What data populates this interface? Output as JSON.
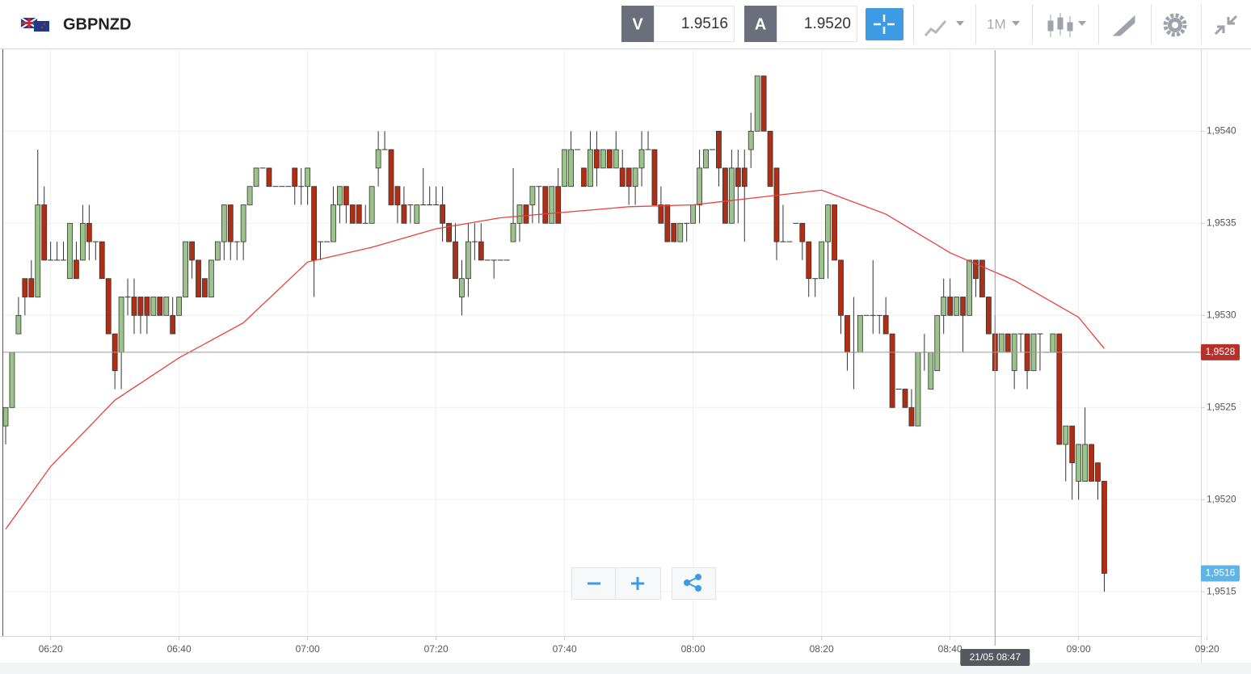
{
  "header": {
    "symbol": "GBPNZD",
    "sell_label": "V",
    "sell": "1.9516",
    "buy_label": "A",
    "buy": "1.9520",
    "timeframe": "1M"
  },
  "chart_data": {
    "type": "candlestick",
    "x": [
      "06:13",
      "06:14",
      "06:15",
      "06:16",
      "06:17",
      "06:18",
      "06:19",
      "06:20",
      "06:21",
      "06:22",
      "06:23",
      "06:24",
      "06:25",
      "06:26",
      "06:27",
      "06:28",
      "06:29",
      "06:30",
      "06:31",
      "06:32",
      "06:33",
      "06:34",
      "06:35",
      "06:36",
      "06:37",
      "06:38",
      "06:39",
      "06:40",
      "06:41",
      "06:42",
      "06:43",
      "06:44",
      "06:45",
      "06:46",
      "06:47",
      "06:48",
      "06:49",
      "06:50",
      "06:51",
      "06:52",
      "06:53",
      "06:54",
      "06:55",
      "06:56",
      "06:57",
      "06:58",
      "06:59",
      "07:00",
      "07:01",
      "07:02",
      "07:03",
      "07:04",
      "07:05",
      "07:06",
      "07:07",
      "07:08",
      "07:09",
      "07:10",
      "07:11",
      "07:12",
      "07:13",
      "07:14",
      "07:15",
      "07:16",
      "07:17",
      "07:18",
      "07:19",
      "07:20",
      "07:21",
      "07:22",
      "07:23",
      "07:24",
      "07:25",
      "07:26",
      "07:27",
      "07:28",
      "07:29",
      "07:30",
      "07:31",
      "07:32",
      "07:33",
      "07:34",
      "07:35",
      "07:36",
      "07:37",
      "07:38",
      "07:39",
      "07:40",
      "07:41",
      "07:42",
      "07:43",
      "07:44",
      "07:45",
      "07:46",
      "07:47",
      "07:48",
      "07:49",
      "07:50",
      "07:51",
      "07:52",
      "07:53",
      "07:54",
      "07:55",
      "07:56",
      "07:57",
      "07:58",
      "07:59",
      "08:00",
      "08:01",
      "08:02",
      "08:03",
      "08:04",
      "08:05",
      "08:06",
      "08:07",
      "08:08",
      "08:09",
      "08:10",
      "08:11",
      "08:12",
      "08:13",
      "08:14",
      "08:15",
      "08:16",
      "08:17",
      "08:18",
      "08:19",
      "08:20",
      "08:21",
      "08:22",
      "08:23",
      "08:24",
      "08:25",
      "08:26",
      "08:27",
      "08:28",
      "08:29",
      "08:30",
      "08:31",
      "08:32",
      "08:33",
      "08:34",
      "08:35",
      "08:36",
      "08:37",
      "08:38",
      "08:39",
      "08:40",
      "08:41",
      "08:42",
      "08:43",
      "08:44",
      "08:45",
      "08:46",
      "08:47",
      "08:48",
      "08:49",
      "08:50",
      "08:51",
      "08:52",
      "08:53",
      "08:54",
      "08:55",
      "08:56",
      "08:57",
      "08:58",
      "08:59",
      "09:00",
      "09:01",
      "09:02",
      "09:03",
      "09:04"
    ],
    "ohlc": [
      [
        1.9524,
        1.9525,
        1.9523,
        1.9525
      ],
      [
        1.9525,
        1.9528,
        1.9525,
        1.9528
      ],
      [
        1.9529,
        1.9531,
        1.9529,
        1.953
      ],
      [
        1.9532,
        1.9532,
        1.953,
        1.9531
      ],
      [
        1.9532,
        1.9533,
        1.9531,
        1.9531
      ],
      [
        1.9531,
        1.9539,
        1.9531,
        1.9536
      ],
      [
        1.9536,
        1.9537,
        1.9533,
        1.9533
      ],
      [
        1.9533,
        1.9534,
        1.9533,
        1.9533
      ],
      [
        1.9533,
        1.9534,
        1.9533,
        1.9533
      ],
      [
        1.9533,
        1.9534,
        1.9533,
        1.9533
      ],
      [
        1.9532,
        1.9535,
        1.9532,
        1.9535
      ],
      [
        1.9533,
        1.9534,
        1.9532,
        1.9532
      ],
      [
        1.9533,
        1.9536,
        1.9533,
        1.9535
      ],
      [
        1.9535,
        1.9536,
        1.9533,
        1.9534
      ],
      [
        1.9534,
        1.9534,
        1.9533,
        1.9534
      ],
      [
        1.9534,
        1.9534,
        1.9532,
        1.9532
      ],
      [
        1.9532,
        1.9532,
        1.9529,
        1.9529
      ],
      [
        1.9529,
        1.9529,
        1.9526,
        1.9527
      ],
      [
        1.9528,
        1.9531,
        1.9526,
        1.9531
      ],
      [
        1.9531,
        1.9532,
        1.953,
        1.9531
      ],
      [
        1.9531,
        1.9532,
        1.9529,
        1.953
      ],
      [
        1.9531,
        1.9531,
        1.9529,
        1.953
      ],
      [
        1.9531,
        1.9531,
        1.9529,
        1.953
      ],
      [
        1.953,
        1.9531,
        1.953,
        1.9531
      ],
      [
        1.9531,
        1.9531,
        1.953,
        1.953
      ],
      [
        1.953,
        1.9531,
        1.953,
        1.9531
      ],
      [
        1.953,
        1.9531,
        1.9529,
        1.9529
      ],
      [
        1.953,
        1.9531,
        1.953,
        1.9531
      ],
      [
        1.9531,
        1.9534,
        1.9531,
        1.9534
      ],
      [
        1.9534,
        1.9534,
        1.9532,
        1.9533
      ],
      [
        1.9533,
        1.9533,
        1.9531,
        1.9531
      ],
      [
        1.9532,
        1.9532,
        1.9531,
        1.9531
      ],
      [
        1.9531,
        1.9533,
        1.9531,
        1.9533
      ],
      [
        1.9533,
        1.9534,
        1.9533,
        1.9534
      ],
      [
        1.9534,
        1.9536,
        1.9533,
        1.9536
      ],
      [
        1.9536,
        1.9536,
        1.9533,
        1.9534
      ],
      [
        1.9534,
        1.9534,
        1.9533,
        1.9534
      ],
      [
        1.9534,
        1.9536,
        1.9533,
        1.9536
      ],
      [
        1.9536,
        1.9537,
        1.9536,
        1.9537
      ],
      [
        1.9537,
        1.9538,
        1.9537,
        1.9538
      ],
      [
        1.9538,
        1.9538,
        1.9538,
        1.9538
      ],
      [
        1.9538,
        1.9538,
        1.9537,
        1.9537
      ],
      [
        1.9537,
        1.9537,
        1.9537,
        1.9537
      ],
      [
        1.9537,
        1.9537,
        1.9537,
        1.9537
      ],
      [
        1.9537,
        1.9537,
        1.9537,
        1.9537
      ],
      [
        1.9538,
        1.9538,
        1.9536,
        1.9537
      ],
      [
        1.9537,
        1.9538,
        1.9536,
        1.9537
      ],
      [
        1.9537,
        1.9538,
        1.9536,
        1.9538
      ],
      [
        1.9537,
        1.9537,
        1.9531,
        1.9533
      ],
      [
        1.9534,
        1.9534,
        1.9533,
        1.9534
      ],
      [
        1.9534,
        1.9534,
        1.9534,
        1.9534
      ],
      [
        1.9534,
        1.9537,
        1.9534,
        1.9536
      ],
      [
        1.9536,
        1.9537,
        1.9535,
        1.9537
      ],
      [
        1.9537,
        1.9537,
        1.9535,
        1.9536
      ],
      [
        1.9536,
        1.9536,
        1.9535,
        1.9535
      ],
      [
        1.9536,
        1.9536,
        1.9535,
        1.9535
      ],
      [
        1.9535,
        1.9536,
        1.9535,
        1.9535
      ],
      [
        1.9535,
        1.9537,
        1.9535,
        1.9537
      ],
      [
        1.9538,
        1.954,
        1.9537,
        1.9539
      ],
      [
        1.9539,
        1.954,
        1.9539,
        1.9539
      ],
      [
        1.9539,
        1.9539,
        1.9536,
        1.9536
      ],
      [
        1.9537,
        1.9537,
        1.9535,
        1.9536
      ],
      [
        1.9536,
        1.9537,
        1.9535,
        1.9535
      ],
      [
        1.9536,
        1.9536,
        1.9535,
        1.9536
      ],
      [
        1.9535,
        1.9536,
        1.9535,
        1.9536
      ],
      [
        1.9536,
        1.9538,
        1.9536,
        1.9536
      ],
      [
        1.9536,
        1.9537,
        1.9536,
        1.9536
      ],
      [
        1.9536,
        1.9537,
        1.9536,
        1.9536
      ],
      [
        1.9536,
        1.9537,
        1.9534,
        1.9535
      ],
      [
        1.9535,
        1.9535,
        1.9534,
        1.9534
      ],
      [
        1.9534,
        1.9535,
        1.9532,
        1.9532
      ],
      [
        1.9531,
        1.9533,
        1.953,
        1.9532
      ],
      [
        1.9532,
        1.9535,
        1.9531,
        1.9534
      ],
      [
        1.9534,
        1.9535,
        1.9533,
        1.9534
      ],
      [
        1.9534,
        1.9535,
        1.9533,
        1.9533
      ],
      [
        1.9533,
        1.9533,
        1.9533,
        1.9533
      ],
      [
        1.9533,
        1.9533,
        1.9532,
        1.9533
      ],
      [
        1.9533,
        1.9533,
        1.9533,
        1.9533
      ],
      [
        1.9533,
        1.9533,
        1.9533,
        1.9533
      ],
      [
        1.9534,
        1.9538,
        1.9534,
        1.9535
      ],
      [
        1.9535,
        1.9536,
        1.9534,
        1.9536
      ],
      [
        1.9536,
        1.9536,
        1.9535,
        1.9535
      ],
      [
        1.9536,
        1.9537,
        1.9535,
        1.9537
      ],
      [
        1.9537,
        1.9537,
        1.9535,
        1.9537
      ],
      [
        1.9537,
        1.9537,
        1.9535,
        1.9535
      ],
      [
        1.9535,
        1.9537,
        1.9535,
        1.9537
      ],
      [
        1.9537,
        1.9538,
        1.9535,
        1.9535
      ],
      [
        1.9537,
        1.9539,
        1.9537,
        1.9539
      ],
      [
        1.9537,
        1.954,
        1.9537,
        1.9539
      ],
      [
        1.9539,
        1.9539,
        1.9539,
        1.9539
      ],
      [
        1.9538,
        1.9538,
        1.9537,
        1.9537
      ],
      [
        1.9537,
        1.954,
        1.9537,
        1.9539
      ],
      [
        1.9539,
        1.954,
        1.9537,
        1.9538
      ],
      [
        1.9538,
        1.9539,
        1.9538,
        1.9539
      ],
      [
        1.9539,
        1.9539,
        1.9538,
        1.9538
      ],
      [
        1.9538,
        1.954,
        1.9538,
        1.9539
      ],
      [
        1.9538,
        1.9539,
        1.9537,
        1.9537
      ],
      [
        1.9538,
        1.9538,
        1.9536,
        1.9537
      ],
      [
        1.9537,
        1.9538,
        1.9536,
        1.9538
      ],
      [
        1.9538,
        1.954,
        1.9537,
        1.9539
      ],
      [
        1.9539,
        1.954,
        1.9539,
        1.9539
      ],
      [
        1.9539,
        1.9539,
        1.9536,
        1.9536
      ],
      [
        1.9536,
        1.9537,
        1.9535,
        1.9535
      ],
      [
        1.9536,
        1.9536,
        1.9534,
        1.9534
      ],
      [
        1.9535,
        1.9535,
        1.9534,
        1.9534
      ],
      [
        1.9534,
        1.9535,
        1.9534,
        1.9535
      ],
      [
        1.9535,
        1.9535,
        1.9534,
        1.9535
      ],
      [
        1.9535,
        1.9536,
        1.9535,
        1.9536
      ],
      [
        1.9536,
        1.9539,
        1.9535,
        1.9538
      ],
      [
        1.9538,
        1.9539,
        1.9538,
        1.9539
      ],
      [
        1.9539,
        1.9539,
        1.9539,
        1.9539
      ],
      [
        1.954,
        1.954,
        1.9537,
        1.9538
      ],
      [
        1.9538,
        1.9538,
        1.9535,
        1.9535
      ],
      [
        1.9535,
        1.9539,
        1.9535,
        1.9538
      ],
      [
        1.9538,
        1.9539,
        1.9535,
        1.9537
      ],
      [
        1.9538,
        1.9539,
        1.9534,
        1.9537
      ],
      [
        1.9539,
        1.9541,
        1.9538,
        1.954
      ],
      [
        1.954,
        1.9543,
        1.954,
        1.9543
      ],
      [
        1.9543,
        1.9543,
        1.954,
        1.954
      ],
      [
        1.954,
        1.954,
        1.9537,
        1.9537
      ],
      [
        1.9538,
        1.9538,
        1.9533,
        1.9534
      ],
      [
        1.9534,
        1.9536,
        1.9534,
        1.9534
      ],
      [
        1.9534,
        1.9534,
        1.9534,
        1.9534
      ],
      [
        1.9535,
        1.9535,
        1.9535,
        1.9535
      ],
      [
        1.9535,
        1.9535,
        1.9533,
        1.9534
      ],
      [
        1.9534,
        1.9534,
        1.9531,
        1.9532
      ],
      [
        1.9532,
        1.9532,
        1.9531,
        1.9532
      ],
      [
        1.9532,
        1.9534,
        1.9532,
        1.9534
      ],
      [
        1.9534,
        1.9536,
        1.9532,
        1.9536
      ],
      [
        1.9536,
        1.9536,
        1.9533,
        1.9533
      ],
      [
        1.9533,
        1.9533,
        1.9529,
        1.953
      ],
      [
        1.953,
        1.953,
        1.9527,
        1.9528
      ],
      [
        1.9528,
        1.9531,
        1.9526,
        1.9528
      ],
      [
        1.9528,
        1.953,
        1.9528,
        1.953
      ],
      [
        1.953,
        1.953,
        1.953,
        1.953
      ],
      [
        1.953,
        1.9533,
        1.9529,
        1.953
      ],
      [
        1.953,
        1.953,
        1.9529,
        1.953
      ],
      [
        1.953,
        1.9531,
        1.9529,
        1.9529
      ],
      [
        1.9529,
        1.9529,
        1.9525,
        1.9525
      ],
      [
        1.9526,
        1.9526,
        1.9526,
        1.9526
      ],
      [
        1.9526,
        1.9526,
        1.9525,
        1.9525
      ],
      [
        1.9525,
        1.9526,
        1.9524,
        1.9524
      ],
      [
        1.9524,
        1.9528,
        1.9524,
        1.9528
      ],
      [
        1.9528,
        1.9529,
        1.9527,
        1.9528
      ],
      [
        1.9526,
        1.9528,
        1.9526,
        1.9528
      ],
      [
        1.9527,
        1.953,
        1.9527,
        1.953
      ],
      [
        1.953,
        1.9532,
        1.9529,
        1.9531
      ],
      [
        1.9531,
        1.9532,
        1.953,
        1.953
      ],
      [
        1.953,
        1.9531,
        1.953,
        1.9531
      ],
      [
        1.9531,
        1.9531,
        1.9528,
        1.953
      ],
      [
        1.953,
        1.9533,
        1.953,
        1.9533
      ],
      [
        1.9533,
        1.9533,
        1.9531,
        1.9532
      ],
      [
        1.9533,
        1.9533,
        1.9531,
        1.9531
      ],
      [
        1.9531,
        1.9531,
        1.9529,
        1.9529
      ],
      [
        1.9529,
        1.953,
        1.9527,
        1.9527
      ],
      [
        1.9528,
        1.9529,
        1.9528,
        1.9529
      ],
      [
        1.9529,
        1.9529,
        1.9528,
        1.9528
      ],
      [
        1.9527,
        1.9529,
        1.9526,
        1.9529
      ],
      [
        1.9529,
        1.9529,
        1.9528,
        1.9529
      ],
      [
        1.9529,
        1.9529,
        1.9526,
        1.9527
      ],
      [
        1.9527,
        1.9529,
        1.9527,
        1.9529
      ],
      [
        1.9529,
        1.9529,
        1.9527,
        1.9529
      ],
      [
        1.9528,
        1.9528,
        1.9528,
        1.9528
      ],
      [
        1.9528,
        1.9529,
        1.9528,
        1.9529
      ],
      [
        1.9529,
        1.9529,
        1.9523,
        1.9523
      ],
      [
        1.9523,
        1.9524,
        1.9521,
        1.9524
      ],
      [
        1.9524,
        1.9524,
        1.952,
        1.9522
      ],
      [
        1.9521,
        1.9523,
        1.952,
        1.9523
      ],
      [
        1.9521,
        1.9525,
        1.9521,
        1.9523
      ],
      [
        1.9523,
        1.9523,
        1.9521,
        1.9521
      ],
      [
        1.9522,
        1.9522,
        1.952,
        1.9521
      ],
      [
        1.9521,
        1.9521,
        1.9515,
        1.9516
      ]
    ],
    "up_color": "#9cc48a",
    "down_color": "#b02e14",
    "ma": {
      "x": [
        "06:13",
        "06:20",
        "06:30",
        "06:40",
        "06:50",
        "07:00",
        "07:10",
        "07:20",
        "07:30",
        "07:40",
        "07:50",
        "08:00",
        "08:10",
        "08:20",
        "08:30",
        "08:40",
        "08:50",
        "09:00",
        "09:04"
      ],
      "values": [
        1.95184,
        1.95218,
        1.95254,
        1.95277,
        1.95296,
        1.95329,
        1.95337,
        1.95347,
        1.95353,
        1.95356,
        1.95359,
        1.9536,
        1.95364,
        1.95368,
        1.95355,
        1.95334,
        1.95319,
        1.95299,
        1.95282
      ],
      "color": "#e8413c"
    },
    "ylim": [
      1.95126,
      1.95444
    ],
    "yticks": [
      {
        "value": 1.9515,
        "label": "1,9515"
      },
      {
        "value": 1.952,
        "label": "1,9520"
      },
      {
        "value": 1.9525,
        "label": "1,9525"
      },
      {
        "value": 1.953,
        "label": "1,9530"
      },
      {
        "value": 1.9535,
        "label": "1,9535"
      },
      {
        "value": 1.954,
        "label": "1,9540"
      }
    ],
    "xticks": [
      "06:20",
      "06:40",
      "07:00",
      "07:20",
      "07:40",
      "08:00",
      "08:20",
      "08:40",
      "09:00",
      "09:20"
    ],
    "grid": true,
    "price_lines": [
      {
        "value": 1.9528,
        "label": "1,9528",
        "color": "#b8302a",
        "line": true
      },
      {
        "value": 1.9516,
        "label": "1,9516",
        "color": "#5fb4e6",
        "line": false
      }
    ],
    "crosshair": {
      "x": "08:47",
      "label": "21/05 08:47"
    }
  }
}
